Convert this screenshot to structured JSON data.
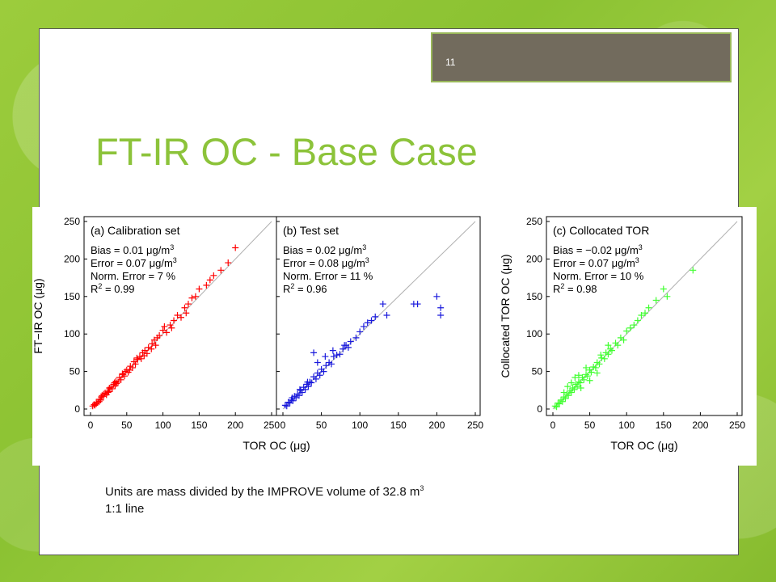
{
  "slide": {
    "page_number": "11",
    "title": "FT-IR OC - Base Case",
    "caption_line1": "Units are mass divided by the IMPROVE volume of 32.8 m",
    "caption_line1_sup": "3",
    "caption_line2": "1:1 line"
  },
  "colors": {
    "title": "#8cc33a",
    "calibration": "#ff0000",
    "test": "#1a1adc",
    "collocated": "#40ff30",
    "one_to_one_line": "#b0b0b0"
  },
  "chart_data": [
    {
      "type": "scatter",
      "panel": "(a) Calibration set",
      "series": [
        {
          "name": "Calibration set",
          "color": "#ff0000",
          "marker": "+"
        }
      ],
      "stats": [
        "Bias = 0.01 μg/m3",
        "Error = 0.07 μg/m3",
        "Norm. Error = 7 %",
        "R2 = 0.99"
      ],
      "ylabel": "FT−IR OC (μg)",
      "xlim": [
        0,
        250
      ],
      "ylim": [
        0,
        250
      ],
      "xticks": [
        0,
        50,
        100,
        150,
        200,
        250
      ],
      "yticks": [
        0,
        50,
        100,
        150,
        200,
        250
      ],
      "one_to_one_line": true,
      "points": [
        [
          3,
          4
        ],
        [
          5,
          6
        ],
        [
          6,
          5
        ],
        [
          8,
          9
        ],
        [
          10,
          9
        ],
        [
          12,
          13
        ],
        [
          14,
          12
        ],
        [
          15,
          16
        ],
        [
          18,
          17
        ],
        [
          20,
          21
        ],
        [
          22,
          19
        ],
        [
          24,
          25
        ],
        [
          25,
          23
        ],
        [
          28,
          29
        ],
        [
          30,
          27
        ],
        [
          32,
          33
        ],
        [
          34,
          31
        ],
        [
          35,
          37
        ],
        [
          38,
          36
        ],
        [
          40,
          42
        ],
        [
          42,
          39
        ],
        [
          45,
          46
        ],
        [
          47,
          44
        ],
        [
          50,
          52
        ],
        [
          52,
          49
        ],
        [
          55,
          57
        ],
        [
          58,
          55
        ],
        [
          60,
          63
        ],
        [
          62,
          60
        ],
        [
          65,
          66
        ],
        [
          68,
          70
        ],
        [
          70,
          67
        ],
        [
          72,
          75
        ],
        [
          75,
          78
        ],
        [
          78,
          74
        ],
        [
          80,
          82
        ],
        [
          85,
          87
        ],
        [
          88,
          92
        ],
        [
          90,
          85
        ],
        [
          95,
          98
        ],
        [
          100,
          105
        ],
        [
          105,
          102
        ],
        [
          110,
          112
        ],
        [
          115,
          118
        ],
        [
          120,
          125
        ],
        [
          125,
          122
        ],
        [
          130,
          135
        ],
        [
          135,
          140
        ],
        [
          140,
          148
        ],
        [
          150,
          160
        ],
        [
          160,
          165
        ],
        [
          170,
          178
        ],
        [
          180,
          185
        ],
        [
          200,
          215
        ],
        [
          12,
          10
        ],
        [
          18,
          20
        ],
        [
          26,
          28
        ],
        [
          36,
          34
        ],
        [
          44,
          47
        ],
        [
          54,
          52
        ],
        [
          64,
          68
        ],
        [
          74,
          71
        ],
        [
          84,
          80
        ],
        [
          92,
          95
        ],
        [
          102,
          110
        ],
        [
          112,
          108
        ],
        [
          132,
          128
        ],
        [
          145,
          150
        ],
        [
          165,
          172
        ],
        [
          190,
          195
        ],
        [
          8,
          7
        ],
        [
          16,
          18
        ],
        [
          24,
          22
        ],
        [
          33,
          35
        ],
        [
          48,
          50
        ]
      ]
    },
    {
      "type": "scatter",
      "panel": "(b) Test set",
      "series": [
        {
          "name": "Test set",
          "color": "#1a1adc",
          "marker": "+"
        }
      ],
      "stats": [
        "Bias = 0.02 μg/m3",
        "Error = 0.08 μg/m3",
        "Norm. Error = 11 %",
        "R2 = 0.96"
      ],
      "xlabel": "TOR OC (μg)",
      "xlim": [
        0,
        250
      ],
      "ylim": [
        0,
        250
      ],
      "xticks": [
        0,
        50,
        100,
        150,
        200,
        250
      ],
      "one_to_one_line": true,
      "points": [
        [
          3,
          5
        ],
        [
          5,
          4
        ],
        [
          7,
          9
        ],
        [
          9,
          8
        ],
        [
          11,
          12
        ],
        [
          13,
          11
        ],
        [
          15,
          17
        ],
        [
          17,
          15
        ],
        [
          19,
          20
        ],
        [
          21,
          18
        ],
        [
          23,
          25
        ],
        [
          25,
          22
        ],
        [
          27,
          29
        ],
        [
          29,
          26
        ],
        [
          31,
          33
        ],
        [
          33,
          30
        ],
        [
          35,
          36
        ],
        [
          37,
          35
        ],
        [
          40,
          43
        ],
        [
          43,
          40
        ],
        [
          45,
          48
        ],
        [
          48,
          45
        ],
        [
          50,
          53
        ],
        [
          53,
          50
        ],
        [
          56,
          58
        ],
        [
          60,
          62
        ],
        [
          63,
          60
        ],
        [
          66,
          70
        ],
        [
          70,
          72
        ],
        [
          74,
          73
        ],
        [
          78,
          80
        ],
        [
          82,
          85
        ],
        [
          88,
          90
        ],
        [
          95,
          95
        ],
        [
          100,
          103
        ],
        [
          105,
          110
        ],
        [
          110,
          115
        ],
        [
          115,
          118
        ],
        [
          120,
          123
        ],
        [
          130,
          140
        ],
        [
          135,
          125
        ],
        [
          170,
          140
        ],
        [
          175,
          140
        ],
        [
          200,
          150
        ],
        [
          205,
          135
        ],
        [
          205,
          125
        ],
        [
          40,
          75
        ],
        [
          45,
          62
        ],
        [
          55,
          70
        ],
        [
          65,
          78
        ],
        [
          80,
          85
        ],
        [
          85,
          82
        ],
        [
          12,
          15
        ],
        [
          22,
          26
        ],
        [
          32,
          36
        ]
      ]
    },
    {
      "type": "scatter",
      "panel": "(c) Collocated TOR",
      "series": [
        {
          "name": "Collocated TOR",
          "color": "#40ff30",
          "marker": "+"
        }
      ],
      "stats": [
        "Bias = −0.02 μg/m3",
        "Error = 0.07 μg/m3",
        "Norm. Error = 10 %",
        "R2 = 0.98"
      ],
      "xlabel": "TOR OC (μg)",
      "ylabel": "Collocated TOR OC (μg)",
      "xlim": [
        0,
        250
      ],
      "ylim": [
        0,
        250
      ],
      "xticks": [
        0,
        50,
        100,
        150,
        200,
        250
      ],
      "yticks": [
        0,
        50,
        100,
        150,
        200,
        250
      ],
      "one_to_one_line": true,
      "points": [
        [
          3,
          4
        ],
        [
          5,
          3
        ],
        [
          7,
          8
        ],
        [
          9,
          7
        ],
        [
          11,
          12
        ],
        [
          13,
          10
        ],
        [
          15,
          16
        ],
        [
          17,
          14
        ],
        [
          19,
          20
        ],
        [
          21,
          18
        ],
        [
          23,
          24
        ],
        [
          25,
          22
        ],
        [
          27,
          28
        ],
        [
          29,
          26
        ],
        [
          31,
          33
        ],
        [
          33,
          30
        ],
        [
          35,
          36
        ],
        [
          37,
          35
        ],
        [
          40,
          42
        ],
        [
          42,
          39
        ],
        [
          45,
          46
        ],
        [
          47,
          44
        ],
        [
          50,
          52
        ],
        [
          52,
          49
        ],
        [
          55,
          56
        ],
        [
          58,
          55
        ],
        [
          60,
          62
        ],
        [
          63,
          60
        ],
        [
          66,
          68
        ],
        [
          70,
          67
        ],
        [
          72,
          75
        ],
        [
          75,
          73
        ],
        [
          78,
          80
        ],
        [
          80,
          78
        ],
        [
          85,
          88
        ],
        [
          88,
          85
        ],
        [
          92,
          95
        ],
        [
          96,
          92
        ],
        [
          100,
          104
        ],
        [
          105,
          108
        ],
        [
          110,
          112
        ],
        [
          115,
          118
        ],
        [
          120,
          125
        ],
        [
          125,
          128
        ],
        [
          130,
          135
        ],
        [
          140,
          145
        ],
        [
          150,
          160
        ],
        [
          155,
          150
        ],
        [
          190,
          185
        ],
        [
          20,
          30
        ],
        [
          25,
          35
        ],
        [
          30,
          42
        ],
        [
          38,
          28
        ],
        [
          45,
          55
        ],
        [
          50,
          38
        ],
        [
          60,
          48
        ],
        [
          65,
          72
        ],
        [
          75,
          85
        ],
        [
          35,
          45
        ],
        [
          15,
          22
        ]
      ]
    }
  ]
}
